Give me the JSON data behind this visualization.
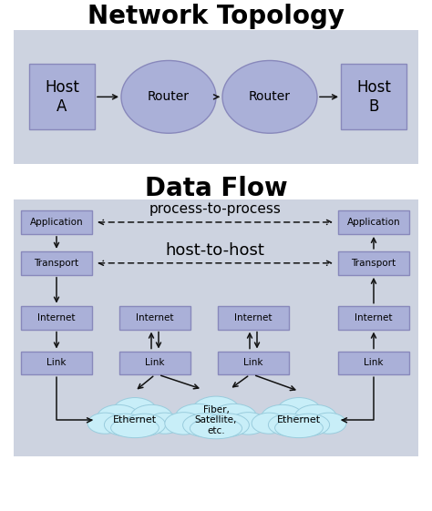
{
  "title_topology": "Network Topology",
  "title_dataflow": "Data Flow",
  "bg_color": "#ffffff",
  "panel_color": "#cdd3e0",
  "box_fill": "#aab0d8",
  "box_edge": "#8888bb",
  "cloud_fill": "#c8eef8",
  "cloud_edge": "#99ccdd",
  "font_family": "DejaVu Sans",
  "arrow_color": "#111111",
  "label_process": "process-to-process",
  "label_host": "host-to-host",
  "topology_nodes": [
    "Host\nA",
    "Router",
    "Router",
    "Host\nB"
  ],
  "dataflow_rows": [
    "Application",
    "Transport",
    "Internet",
    "Link"
  ],
  "cloud_labels": [
    "Ethernet",
    "Fiber,\nSatellite,\netc.",
    "Ethernet"
  ]
}
